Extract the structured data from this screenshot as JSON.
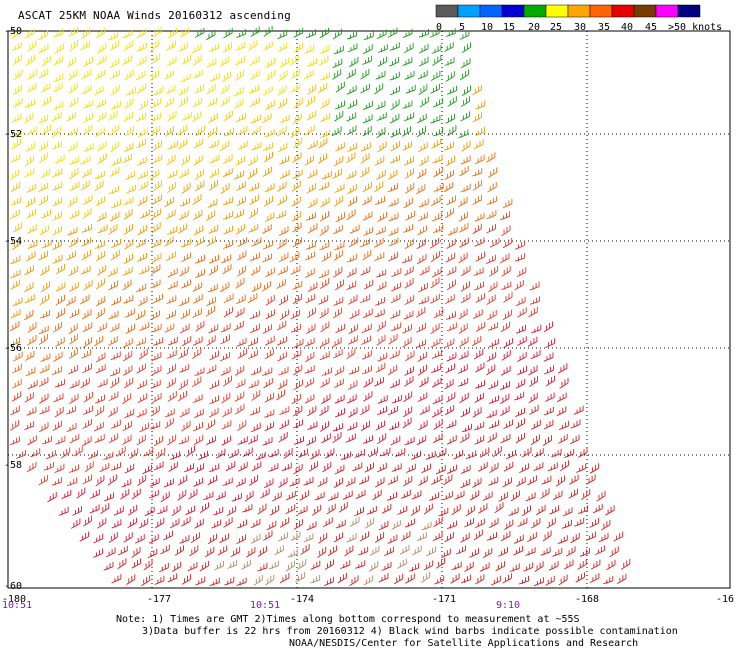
{
  "title": "ASCAT 25KM NOAA Winds 20160312 ascending",
  "legend": {
    "labels": [
      "0",
      "5",
      "10",
      "15",
      "20",
      "25",
      "30",
      "35",
      "40",
      "45",
      ">50 knots"
    ],
    "colors": [
      "#5a5a5a",
      "#00a0ff",
      "#0064ff",
      "#0000d2",
      "#00aa00",
      "#ffff00",
      "#ffa500",
      "#ff6400",
      "#e60000",
      "#783c00",
      "#ff00ff",
      "#000080"
    ]
  },
  "axes": {
    "lat_labels": [
      "-50",
      "-52",
      "-54",
      "-56",
      "-58",
      "-60"
    ],
    "lon_labels": [
      "-180",
      "-177",
      "-174",
      "-171",
      "-168",
      "-16"
    ],
    "time_labels": [
      "10:51",
      "10:51",
      "9:10"
    ]
  },
  "notes": {
    "line1": "Note: 1) Times are GMT 2)Times along bottom correspond to measurement at ~55S",
    "line2": "3)Data buffer is 22 hrs from 20160312 4) Black wind barbs indicate possible contamination",
    "line3": "NOAA/NESDIS/Center for Satellite Applications and Research"
  }
}
